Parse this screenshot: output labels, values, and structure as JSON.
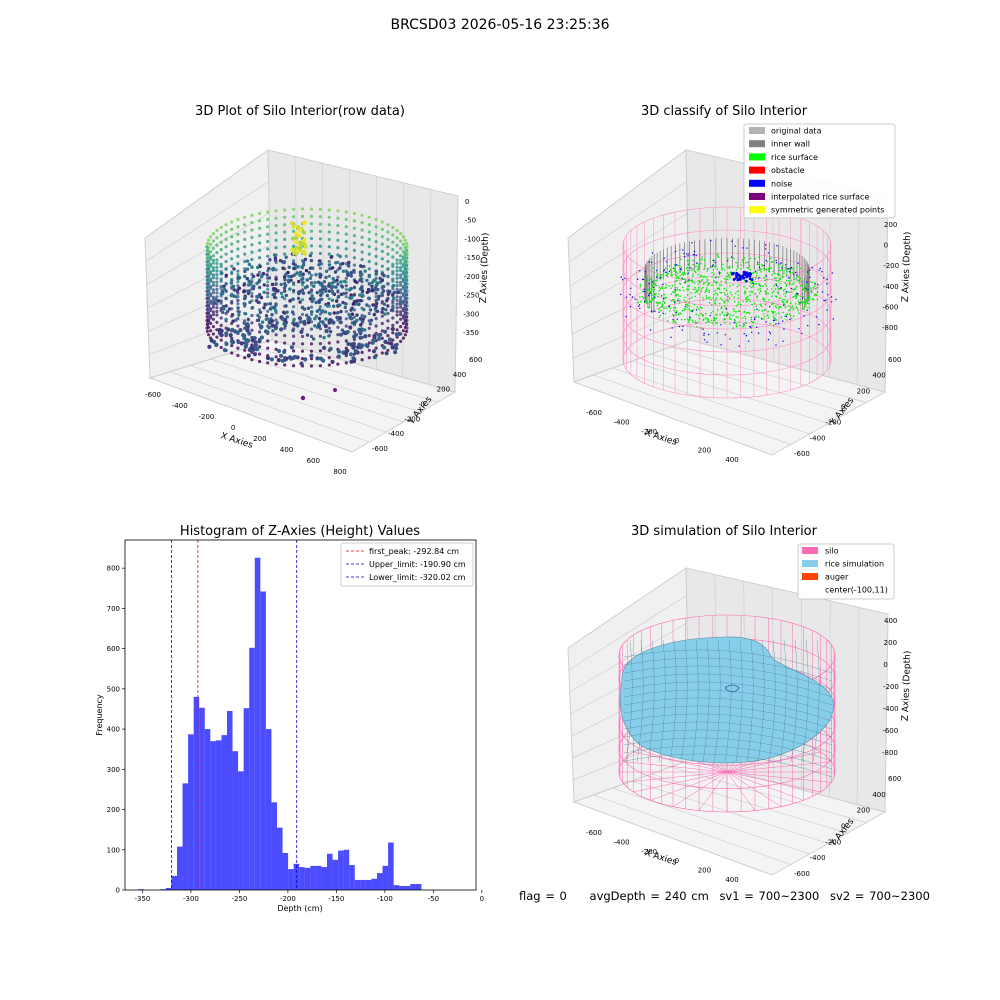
{
  "suptitle": "BRCSD03 2026-05-16 23:25:36",
  "footer": {
    "flag": "flag = 0",
    "avg": "avgDepth = 240 cm",
    "sv1": "sv1 = 700~2300",
    "sv2": "sv2 = 700~2300"
  },
  "chart_data": [
    {
      "type": "scatter",
      "title": "3D Plot of Silo Interior(row data)",
      "xlabel": "X Axies",
      "ylabel": "Y Axies",
      "zlabel": "Z Axies (Depth)",
      "xticks": [
        "-600",
        "-400",
        "-200",
        "0",
        "200",
        "400",
        "600",
        "800"
      ],
      "yticks": [
        "-600",
        "-400",
        "-200",
        "0",
        "200",
        "400",
        "600"
      ],
      "zticks": [
        "0",
        "-50",
        "-100",
        "-150",
        "-200",
        "-250",
        "-300",
        "-350"
      ],
      "colormap": [
        "#440154",
        "#3b528b",
        "#21918c",
        "#5ec962",
        "#fde725"
      ]
    },
    {
      "type": "scatter",
      "title": "3D classify of Silo Interior",
      "xlabel": "X Axies",
      "ylabel": "Y Axies",
      "zlabel": "Z Axies (Depth)",
      "xticks": [
        "-600",
        "-400",
        "-200",
        "0",
        "200",
        "400"
      ],
      "yticks": [
        "-600",
        "-400",
        "-200",
        "0",
        "200",
        "400",
        "600"
      ],
      "zticks": [
        "200",
        "0",
        "-200",
        "-400",
        "-600",
        "-800"
      ],
      "legend": {
        "placement": "top-right",
        "items": [
          {
            "label": "original data",
            "color": "#b3b3b3"
          },
          {
            "label": "inner wall",
            "color": "#808080"
          },
          {
            "label": "rice surface",
            "color": "#00ff00"
          },
          {
            "label": "obstacle",
            "color": "#ff0000"
          },
          {
            "label": "noise",
            "color": "#0000ff"
          },
          {
            "label": "interpolated rice surface",
            "color": "#800080"
          },
          {
            "label": "symmetric generated points",
            "color": "#ffff00"
          }
        ]
      }
    },
    {
      "type": "bar",
      "title": "Histogram of Z-Axies (Height) Values",
      "xlabel": "Depth (cm)",
      "ylabel": "Frequency",
      "xlim": [
        -368,
        -6
      ],
      "ylim": [
        0,
        870
      ],
      "xticks": [
        -350,
        -300,
        -250,
        -200,
        -150,
        -100,
        -50,
        0
      ],
      "yticks": [
        0,
        100,
        200,
        300,
        400,
        500,
        600,
        700,
        800
      ],
      "bar_color": "#0000ff",
      "bin_start": -354.5,
      "bin_width": 5.73,
      "values": [
        2,
        0,
        0,
        0,
        2,
        5,
        35,
        108,
        265,
        387,
        480,
        453,
        400,
        370,
        372,
        385,
        445,
        345,
        295,
        452,
        602,
        826,
        742,
        400,
        218,
        155,
        92,
        52,
        65,
        57,
        55,
        60,
        60,
        57,
        90,
        75,
        98,
        100,
        62,
        25,
        25,
        25,
        28,
        42,
        60,
        118,
        12,
        10,
        10,
        15,
        15
      ],
      "lines": [
        {
          "label": "first_peak: -292.84 cm",
          "x": -292.84,
          "color": "#ff0000"
        },
        {
          "label": "Upper_limit: -190.90 cm",
          "x": -190.9,
          "color": "#0000cc"
        },
        {
          "label": "Lower_limit: -320.02 cm",
          "x": -320.02,
          "color": "#0000cc"
        }
      ],
      "legend": {
        "placement": "top-right"
      }
    },
    {
      "type": "surface",
      "title": "3D simulation of Silo Interior",
      "xlabel": "X Axies",
      "ylabel": "Y Axies",
      "zlabel": "Z Axies (Depth)",
      "xticks": [
        "-600",
        "-400",
        "-200",
        "0",
        "200",
        "400"
      ],
      "yticks": [
        "-600",
        "-400",
        "-200",
        "0",
        "200",
        "400",
        "600"
      ],
      "zticks": [
        "400",
        "200",
        "0",
        "-200",
        "-400",
        "-600",
        "-800"
      ],
      "legend": {
        "placement": "top-right",
        "items": [
          {
            "label": "silo",
            "color": "#ff69b4"
          },
          {
            "label": "rice simulation",
            "color": "#87ceeb"
          },
          {
            "label": "auger",
            "color": "#ff4500"
          },
          {
            "label": "center(-100,11)",
            "color": ""
          }
        ]
      }
    }
  ]
}
